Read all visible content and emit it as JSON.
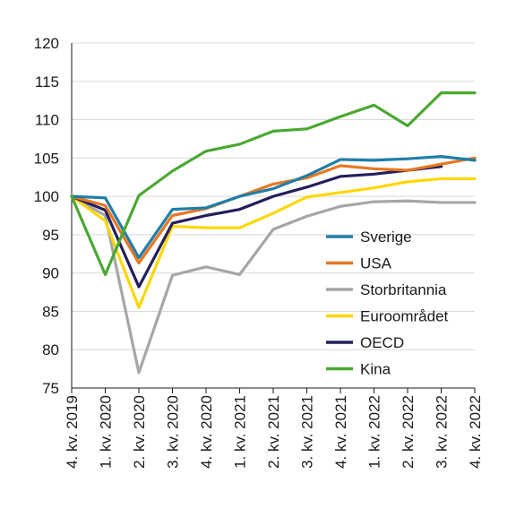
{
  "chart_data": {
    "type": "line",
    "title": "",
    "xlabel": "",
    "ylabel": "",
    "categories": [
      "4. kv. 2019",
      "1. kv. 2020",
      "2. kv. 2020",
      "3. kv. 2020",
      "4. kv. 2020",
      "1. kv. 2021",
      "2. kv. 2021",
      "3. kv. 2021",
      "4. kv. 2021",
      "1. kv. 2022",
      "2. kv. 2022",
      "3. kv. 2022",
      "4. kv. 2022"
    ],
    "ylim": [
      75,
      120
    ],
    "yticks": [
      75,
      80,
      85,
      90,
      95,
      100,
      105,
      110,
      115,
      120
    ],
    "grid": "horizontal",
    "legend_position": "right",
    "series": [
      {
        "name": "Sverige",
        "color": "#1f7ea8",
        "values": [
          100,
          99.8,
          92,
          98.3,
          98.5,
          100,
          101,
          102.7,
          104.8,
          104.7,
          104.9,
          105.2,
          104.7
        ]
      },
      {
        "name": "USA",
        "color": "#e87722",
        "values": [
          100,
          98.8,
          91.3,
          97.5,
          98.4,
          100,
          101.6,
          102.4,
          104,
          103.6,
          103.4,
          104.2,
          105
        ]
      },
      {
        "name": "Storbritannia",
        "color": "#a6a6a6",
        "values": [
          100,
          97.5,
          77,
          89.7,
          90.8,
          89.8,
          95.7,
          97.4,
          98.7,
          99.3,
          99.4,
          99.2,
          99.2
        ]
      },
      {
        "name": "Euroområdet",
        "color": "#ffd700",
        "values": [
          100,
          96.8,
          85.5,
          96.1,
          95.9,
          95.9,
          97.8,
          99.9,
          100.5,
          101.1,
          101.9,
          102.3,
          102.3
        ]
      },
      {
        "name": "OECD",
        "color": "#231f5c",
        "values": [
          100,
          98.2,
          88.2,
          96.5,
          97.5,
          98.3,
          100,
          101.2,
          102.6,
          102.9,
          103.4,
          103.9,
          null
        ]
      },
      {
        "name": "Kina",
        "color": "#4aa832",
        "values": [
          100,
          89.8,
          100.1,
          103.3,
          105.9,
          106.8,
          108.5,
          108.8,
          110.4,
          111.9,
          109.2,
          113.5,
          113.5
        ]
      }
    ]
  }
}
